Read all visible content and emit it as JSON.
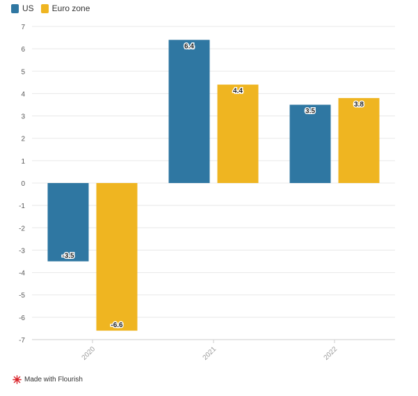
{
  "legend": [
    {
      "label": "US",
      "color": "#2f77a2"
    },
    {
      "label": "Euro zone",
      "color": "#efb521"
    }
  ],
  "credit": {
    "text": "Made with Flourish",
    "icon": "flourish-logo-icon",
    "icon_color": "#d9232a"
  },
  "chart_data": {
    "type": "bar",
    "categories": [
      "2020",
      "2021",
      "2022"
    ],
    "series": [
      {
        "name": "US",
        "color": "#2f77a2",
        "values": [
          -3.5,
          6.4,
          3.5
        ]
      },
      {
        "name": "Euro zone",
        "color": "#efb521",
        "values": [
          -6.6,
          4.4,
          3.8
        ]
      }
    ],
    "ylim": [
      -7,
      7
    ],
    "yticks": [
      7,
      6,
      5,
      4,
      3,
      2,
      1,
      0,
      -1,
      -2,
      -3,
      -4,
      -5,
      -6,
      -7
    ],
    "data_labels": true,
    "grid": true,
    "legend_position": "top-left",
    "xlabel": "",
    "ylabel": "",
    "title": ""
  }
}
